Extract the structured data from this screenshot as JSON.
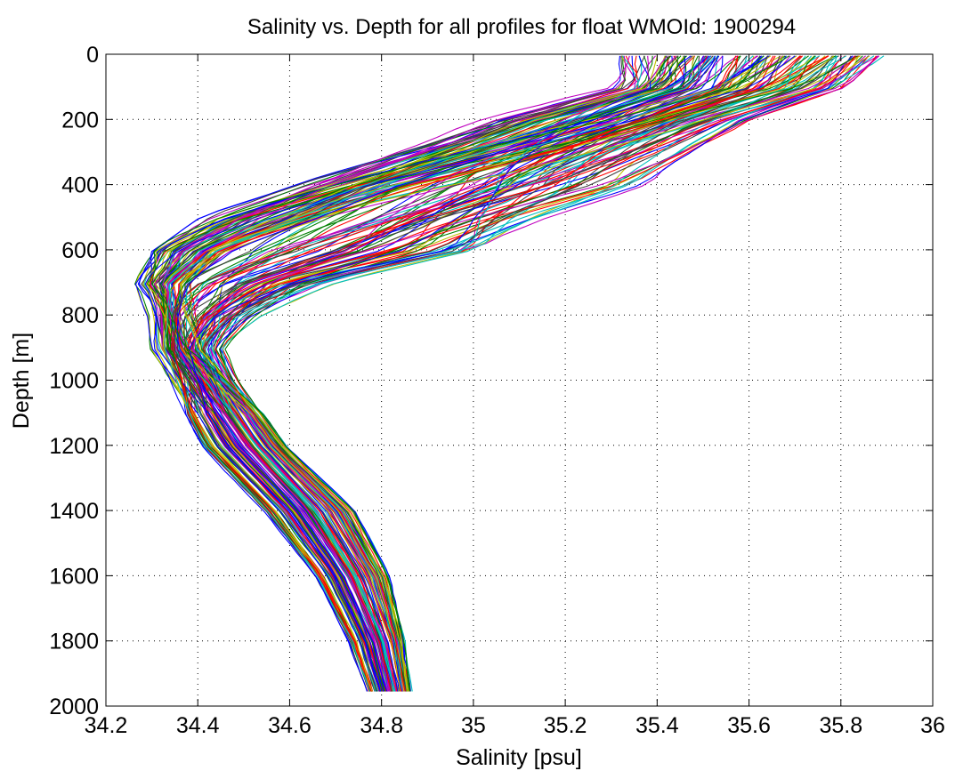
{
  "chart_data": {
    "type": "line",
    "title": "Salinity vs. Depth for all profiles for float WMOId: 1900294",
    "xlabel": "Salinity [psu]",
    "ylabel": "Depth [m]",
    "xlim": [
      34.2,
      36
    ],
    "ylim": [
      0,
      2000
    ],
    "y_reversed": true,
    "grid": "dotted",
    "legend": "none",
    "xticks": [
      34.2,
      34.4,
      34.6,
      34.8,
      35,
      35.2,
      35.4,
      35.6,
      35.8,
      36
    ],
    "xtick_labels": [
      "34.2",
      "34.4",
      "34.6",
      "34.8",
      "35",
      "35.2",
      "35.4",
      "35.6",
      "35.8",
      "36"
    ],
    "yticks": [
      0,
      200,
      400,
      600,
      800,
      1000,
      1200,
      1400,
      1600,
      1800,
      2000
    ],
    "ytick_labels": [
      "0",
      "200",
      "400",
      "600",
      "800",
      "1000",
      "1200",
      "1400",
      "1600",
      "1800",
      "2000"
    ],
    "line_colors": [
      "#0000ff",
      "#008000",
      "#ff0000",
      "#00bfbf",
      "#bf00bf",
      "#bfbf00",
      "#404040"
    ],
    "profile_count_approx": 150,
    "envelope": {
      "depth": [
        0,
        100,
        200,
        300,
        400,
        500,
        600,
        700,
        800,
        900,
        1000,
        1200,
        1400,
        1600,
        1800,
        1975
      ],
      "salinity_min": [
        35.32,
        35.28,
        34.95,
        34.75,
        34.55,
        34.38,
        34.3,
        34.24,
        34.28,
        34.27,
        34.3,
        34.36,
        34.5,
        34.62,
        34.7,
        34.75
      ],
      "salinity_median": [
        35.62,
        35.55,
        35.35,
        35.12,
        34.88,
        34.68,
        34.48,
        34.38,
        34.36,
        34.37,
        34.42,
        34.52,
        34.65,
        34.74,
        34.8,
        34.83
      ],
      "salinity_max": [
        35.9,
        35.85,
        35.65,
        35.55,
        35.45,
        35.2,
        35.0,
        34.75,
        34.6,
        34.5,
        34.52,
        34.62,
        34.78,
        34.85,
        34.87,
        34.88
      ]
    }
  }
}
